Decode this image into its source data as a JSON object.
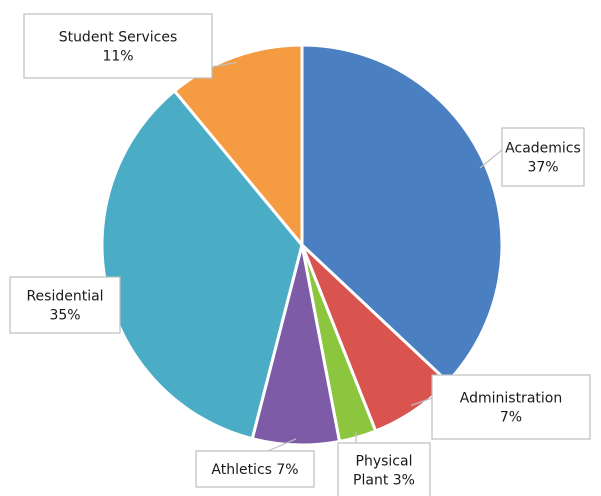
{
  "chart_data": {
    "type": "pie",
    "start_angle_deg": 0,
    "direction": "clockwise",
    "slices": [
      {
        "name": "Academics",
        "value": 37,
        "label_lines": [
          "Academics",
          "37%"
        ],
        "color": "#4a7fc1",
        "label_pos": "right"
      },
      {
        "name": "Administration",
        "value": 7,
        "label_lines": [
          "Administration",
          "7%"
        ],
        "color": "#d9534f",
        "label_pos": "bottom-right"
      },
      {
        "name": "Physical Plant",
        "value": 3,
        "label_lines": [
          "Physical",
          "Plant 3%"
        ],
        "color": "#8cc63f",
        "label_pos": "bottom"
      },
      {
        "name": "Athletics",
        "value": 7,
        "label_lines": [
          "Athletics 7%"
        ],
        "color": "#7d5ba6",
        "label_pos": "bottom-left"
      },
      {
        "name": "Residential",
        "value": 35,
        "label_lines": [
          "Residential",
          "35%"
        ],
        "color": "#4bacc6",
        "label_pos": "left"
      },
      {
        "name": "Student Services",
        "value": 11,
        "label_lines": [
          "Student Services",
          "11%"
        ],
        "color": "#f59c43",
        "label_pos": "top-left"
      }
    ]
  }
}
